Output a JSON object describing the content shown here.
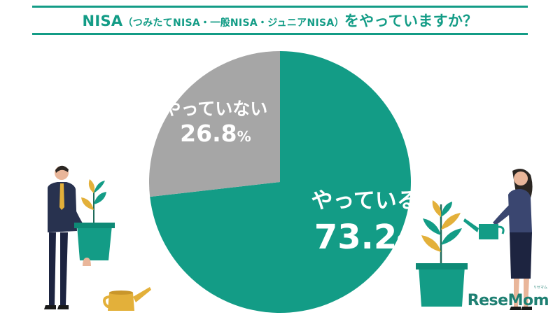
{
  "title": {
    "prefix": "NISA",
    "paren": "（つみたてNISA・一般NISA・ジュニアNISA）",
    "suffix": "をやっていますか？"
  },
  "chart_data": {
    "type": "pie",
    "title": "NISA（つみたてNISA・一般NISA・ジュニアNISA）をやっていますか？",
    "slices": [
      {
        "label": "やっている",
        "value": 73.2,
        "display": "73.2",
        "unit": "%",
        "color": "#139c86"
      },
      {
        "label": "やっていない",
        "value": 26.8,
        "display": "26.8",
        "unit": "%",
        "color": "#a6a6a6"
      }
    ],
    "start_angle_deg": 0,
    "direction": "clockwise"
  },
  "logo": {
    "text": "ReseMom",
    "ruby": "リセマム"
  },
  "colors": {
    "accent": "#139c86",
    "gray": "#a6a6a6",
    "gold": "#e3b03a",
    "navy": "#2b3556"
  }
}
